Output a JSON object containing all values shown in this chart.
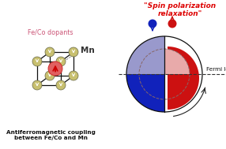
{
  "title_text": "\"Spin polarization\nrelaxation\"",
  "title_color": "#dd0000",
  "fermi_label": "Fermi level",
  "mn_label": "Mn",
  "dopants_label": "Fe/Co dopants",
  "bottom_label1": "Antiferromagnetic coupling",
  "bottom_label2": "between Fe/Co and Mn",
  "bg_color": "#ffffff",
  "blue_light": "#9999cc",
  "blue_dark": "#1122bb",
  "red_light": "#e8aaaa",
  "red_dark": "#cc1111",
  "cube_node_color": "#c8c070",
  "cube_edge_color": "#111111",
  "dopant_fill": "#e06060",
  "dopant_edge": "#cc2222",
  "dopant_arrow": "#cc0000",
  "node_arrow": "#ffffff",
  "figw": 2.86,
  "figh": 1.89,
  "dpi": 100
}
